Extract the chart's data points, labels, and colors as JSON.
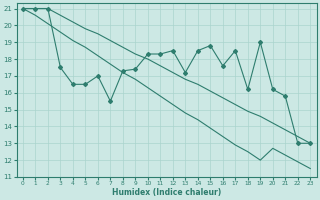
{
  "xlabel": "Humidex (Indice chaleur)",
  "x": [
    0,
    1,
    2,
    3,
    4,
    5,
    6,
    7,
    8,
    9,
    10,
    11,
    12,
    13,
    14,
    15,
    16,
    17,
    18,
    19,
    20,
    21,
    22,
    23
  ],
  "y_data": [
    21.0,
    21.0,
    21.0,
    17.5,
    16.5,
    16.5,
    17.0,
    15.5,
    17.3,
    17.4,
    18.3,
    18.3,
    18.5,
    17.2,
    18.5,
    18.8,
    17.6,
    18.5,
    16.2,
    19.0,
    16.2,
    15.8,
    13.0,
    13.0
  ],
  "y_upper": [
    21.0,
    21.0,
    21.0,
    20.6,
    20.2,
    19.8,
    19.5,
    19.1,
    18.7,
    18.3,
    18.0,
    17.6,
    17.2,
    16.8,
    16.5,
    16.1,
    15.7,
    15.3,
    14.9,
    14.6,
    14.2,
    13.8,
    13.4,
    13.0
  ],
  "y_lower": [
    21.0,
    20.6,
    20.1,
    19.6,
    19.1,
    18.7,
    18.2,
    17.7,
    17.2,
    16.8,
    16.3,
    15.8,
    15.3,
    14.8,
    14.4,
    13.9,
    13.4,
    12.9,
    12.5,
    12.0,
    12.7,
    12.3,
    11.9,
    11.5
  ],
  "line_color": "#2e7d6e",
  "bg_color": "#cce8e4",
  "grid_color": "#aad4ce",
  "ylim": [
    11,
    21
  ],
  "xlim": [
    -0.5,
    23.5
  ],
  "yticks": [
    11,
    12,
    13,
    14,
    15,
    16,
    17,
    18,
    19,
    20,
    21
  ],
  "xticks": [
    0,
    1,
    2,
    3,
    4,
    5,
    6,
    7,
    8,
    9,
    10,
    11,
    12,
    13,
    14,
    15,
    16,
    17,
    18,
    19,
    20,
    21,
    22,
    23
  ]
}
